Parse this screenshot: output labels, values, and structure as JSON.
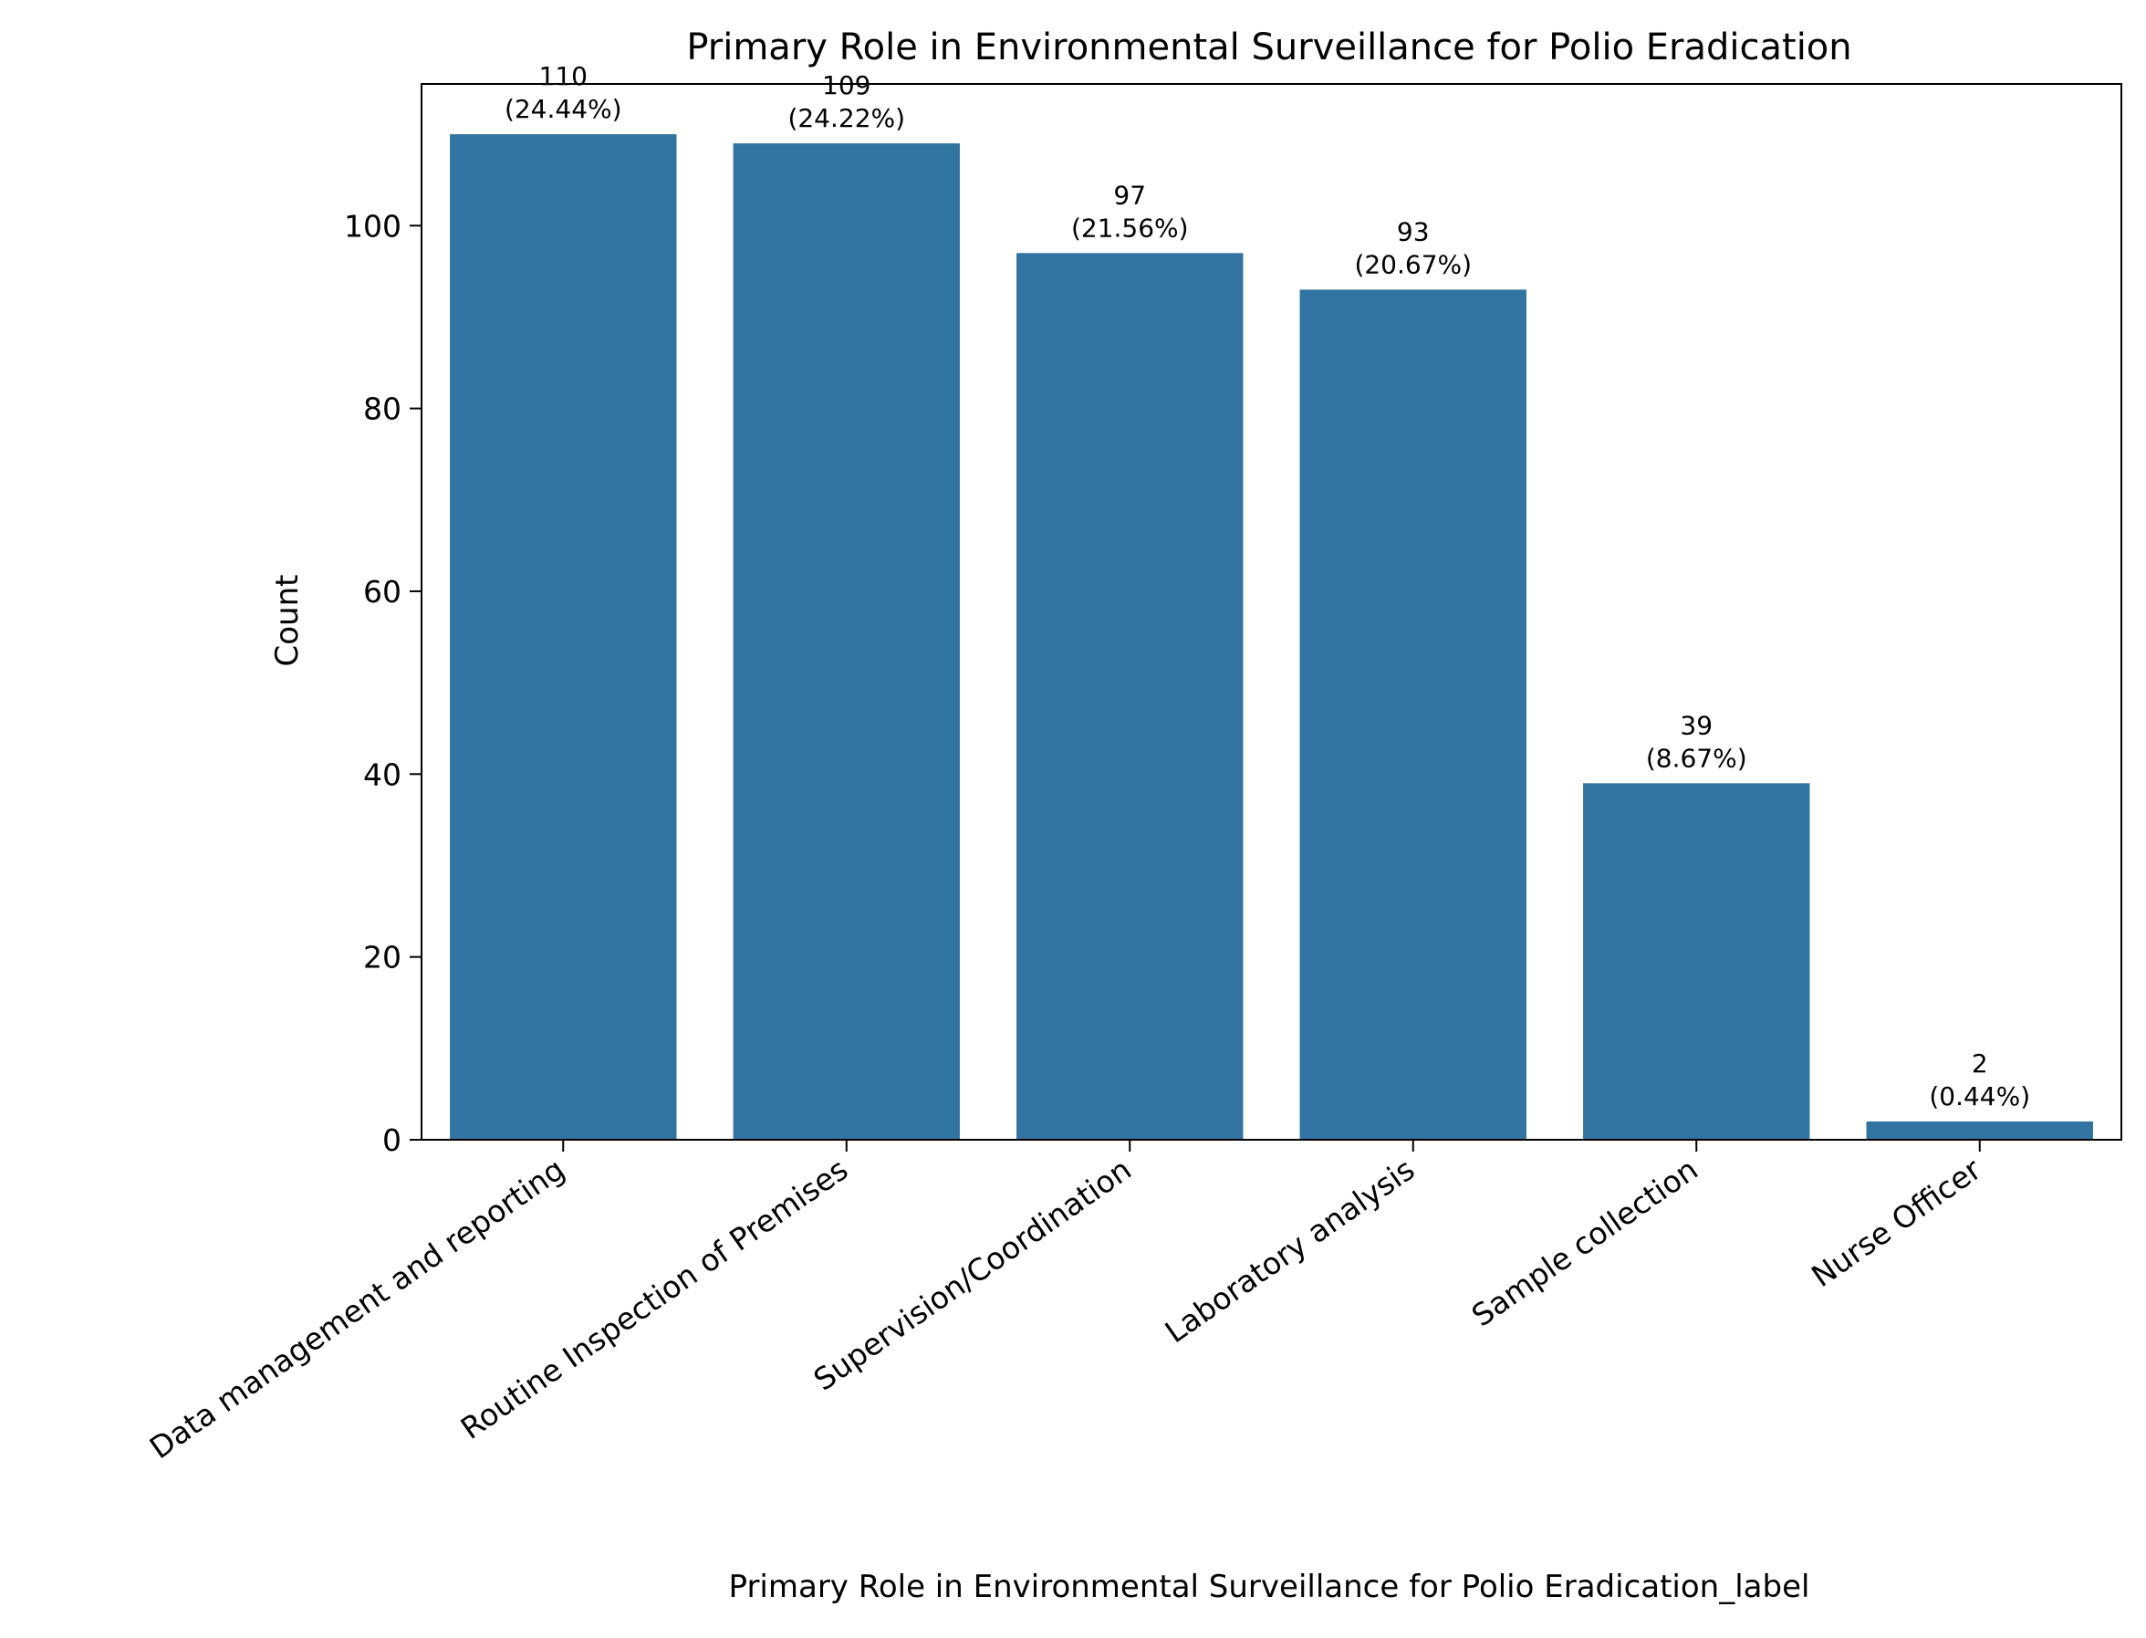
{
  "chart_data": {
    "type": "bar",
    "title": "Primary Role in Environmental Surveillance for Polio Eradication",
    "xlabel": "Primary Role in Environmental Surveillance for Polio Eradication_label",
    "ylabel": "Count",
    "categories": [
      "Data management and reporting",
      "Routine Inspection of Premises",
      "Supervision/Coordination",
      "Laboratory analysis",
      "Sample collection",
      "Nurse Officer"
    ],
    "values": [
      110,
      109,
      97,
      93,
      39,
      2
    ],
    "percent_labels": [
      "(24.44%)",
      "(24.22%)",
      "(21.56%)",
      "(20.67%)",
      "(8.67%)",
      "(0.44%)"
    ],
    "ylim": [
      0,
      115.5
    ],
    "yticks": [
      0,
      20,
      40,
      60,
      80,
      100
    ],
    "bar_color": "#3274a1",
    "grid": false,
    "legend": "none"
  }
}
